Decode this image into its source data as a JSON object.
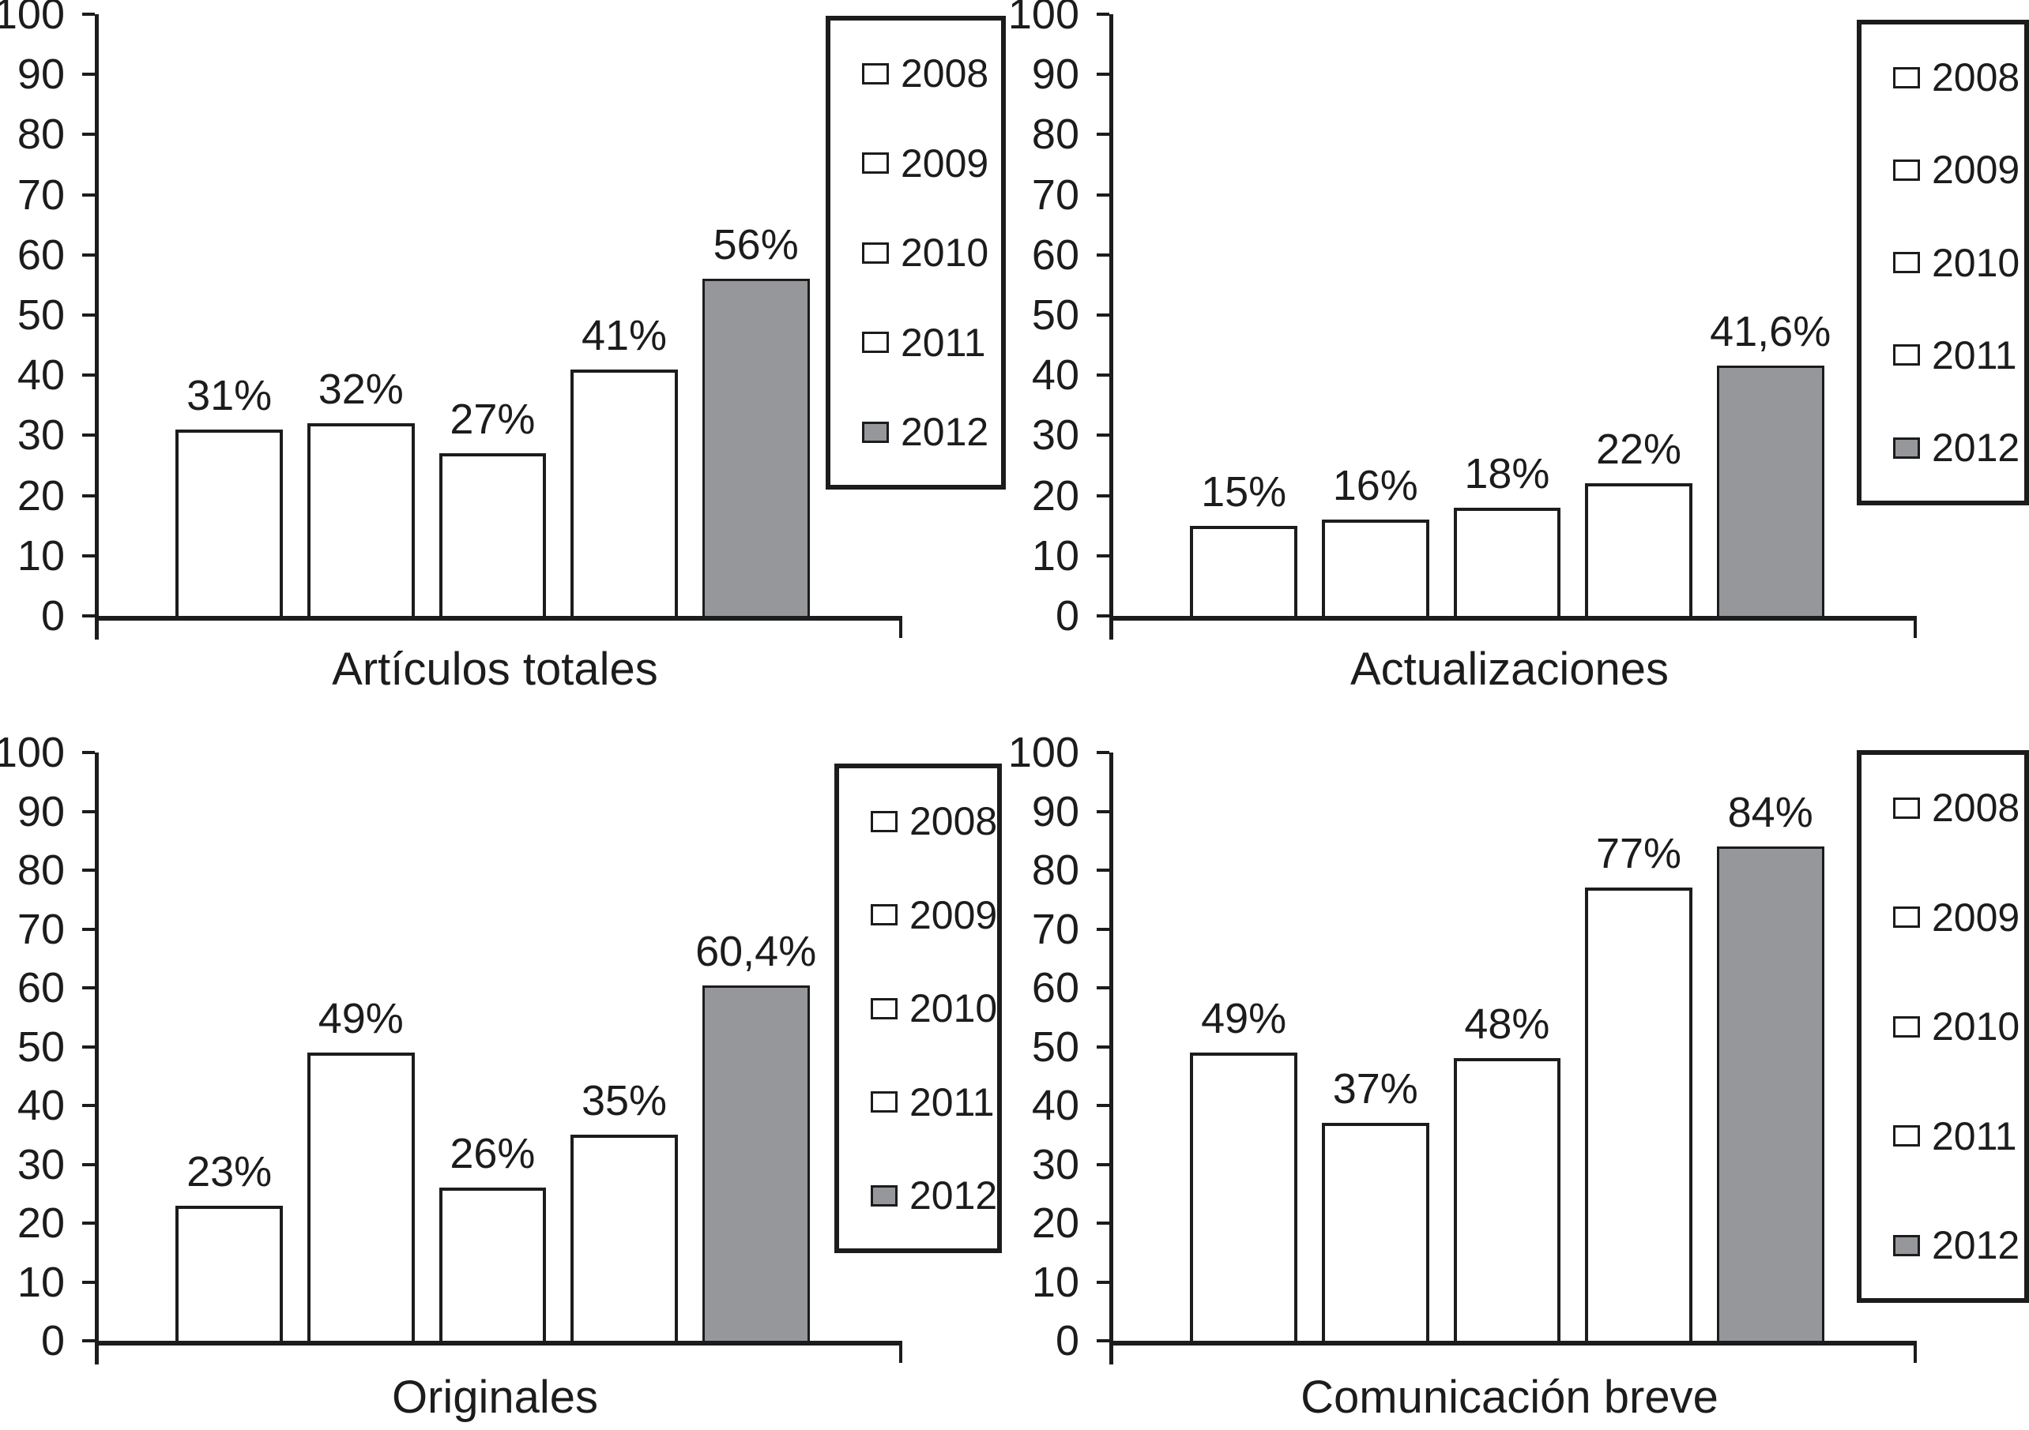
{
  "figure": {
    "y_axis": {
      "min": 0,
      "max": 100,
      "step": 10,
      "tick_labels": [
        "0",
        "10",
        "20",
        "30",
        "40",
        "50",
        "60",
        "70",
        "80",
        "90",
        "100"
      ]
    },
    "legend": {
      "items": [
        {
          "label": "2008",
          "swatch": "white"
        },
        {
          "label": "2009",
          "swatch": "white"
        },
        {
          "label": "2010",
          "swatch": "white"
        },
        {
          "label": "2011",
          "swatch": "white"
        },
        {
          "label": "2012",
          "swatch": "gray"
        }
      ],
      "position": "right"
    },
    "colors": {
      "bar_fill_white": "#ffffff",
      "bar_fill_gray": "#95979a",
      "line": "#1c1c1c",
      "background": "#ffffff"
    }
  },
  "chart_data": [
    {
      "type": "bar",
      "title": "Artículos totales",
      "categories": [
        "2008",
        "2009",
        "2010",
        "2011",
        "2012"
      ],
      "values": [
        31,
        32,
        27,
        41,
        56
      ],
      "value_labels": [
        "31%",
        "32%",
        "27%",
        "41%",
        "56%"
      ],
      "xlabel": "Artículos totales",
      "ylabel": "",
      "ylim": [
        0,
        100
      ],
      "grid": false,
      "legend_position": "right"
    },
    {
      "type": "bar",
      "title": "Actualizaciones",
      "categories": [
        "2008",
        "2009",
        "2010",
        "2011",
        "2012"
      ],
      "values": [
        15,
        16,
        18,
        22,
        41.6
      ],
      "value_labels": [
        "15%",
        "16%",
        "18%",
        "22%",
        "41,6%"
      ],
      "xlabel": "Actualizaciones",
      "ylabel": "",
      "ylim": [
        0,
        100
      ],
      "grid": false,
      "legend_position": "right"
    },
    {
      "type": "bar",
      "title": "Originales",
      "categories": [
        "2008",
        "2009",
        "2010",
        "2011",
        "2012"
      ],
      "values": [
        23,
        49,
        26,
        35,
        60.4
      ],
      "value_labels": [
        "23%",
        "49%",
        "26%",
        "35%",
        "60,4%"
      ],
      "xlabel": "Originales",
      "ylabel": "",
      "ylim": [
        0,
        100
      ],
      "grid": false,
      "legend_position": "right"
    },
    {
      "type": "bar",
      "title": "Comunicación breve",
      "categories": [
        "2008",
        "2009",
        "2010",
        "2011",
        "2012"
      ],
      "values": [
        49,
        37,
        48,
        77,
        84
      ],
      "value_labels": [
        "49%",
        "37%",
        "48%",
        "77%",
        "84%"
      ],
      "xlabel": "Comunicación breve",
      "ylabel": "",
      "ylim": [
        0,
        100
      ],
      "grid": false,
      "legend_position": "right"
    }
  ]
}
